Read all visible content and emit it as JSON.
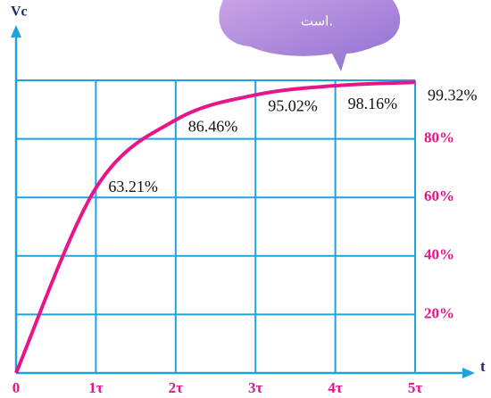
{
  "chart_data": {
    "type": "line",
    "x_label": "t",
    "y_label": "Vc",
    "annotation": "است.",
    "x": [
      0,
      1,
      2,
      3,
      4,
      5
    ],
    "series": [
      {
        "color": "#e6158a",
        "values": [
          0,
          63.21,
          86.46,
          95.02,
          98.16,
          99.32
        ],
        "value_labels": [
          null,
          "63.21%",
          "86.46%",
          "95.02%",
          "98.16%",
          "99.32%"
        ]
      }
    ],
    "xlim": [
      0,
      5
    ],
    "ylim": [
      0,
      100
    ],
    "xticks": [
      0,
      {
        "value": 1,
        "label": "1τ"
      },
      {
        "value": 2,
        "label": "2τ"
      },
      {
        "value": 3,
        "label": "3τ"
      },
      {
        "value": 4,
        "label": "4τ"
      },
      {
        "value": 5,
        "label": "5τ"
      }
    ],
    "yticks": [
      {
        "value": 20,
        "label": "20%"
      },
      {
        "value": 40,
        "label": "40%"
      },
      {
        "value": 60,
        "label": "60%"
      },
      {
        "value": 80,
        "label": "80%"
      }
    ],
    "grid": true,
    "grid_color": "#1fa3e0"
  }
}
